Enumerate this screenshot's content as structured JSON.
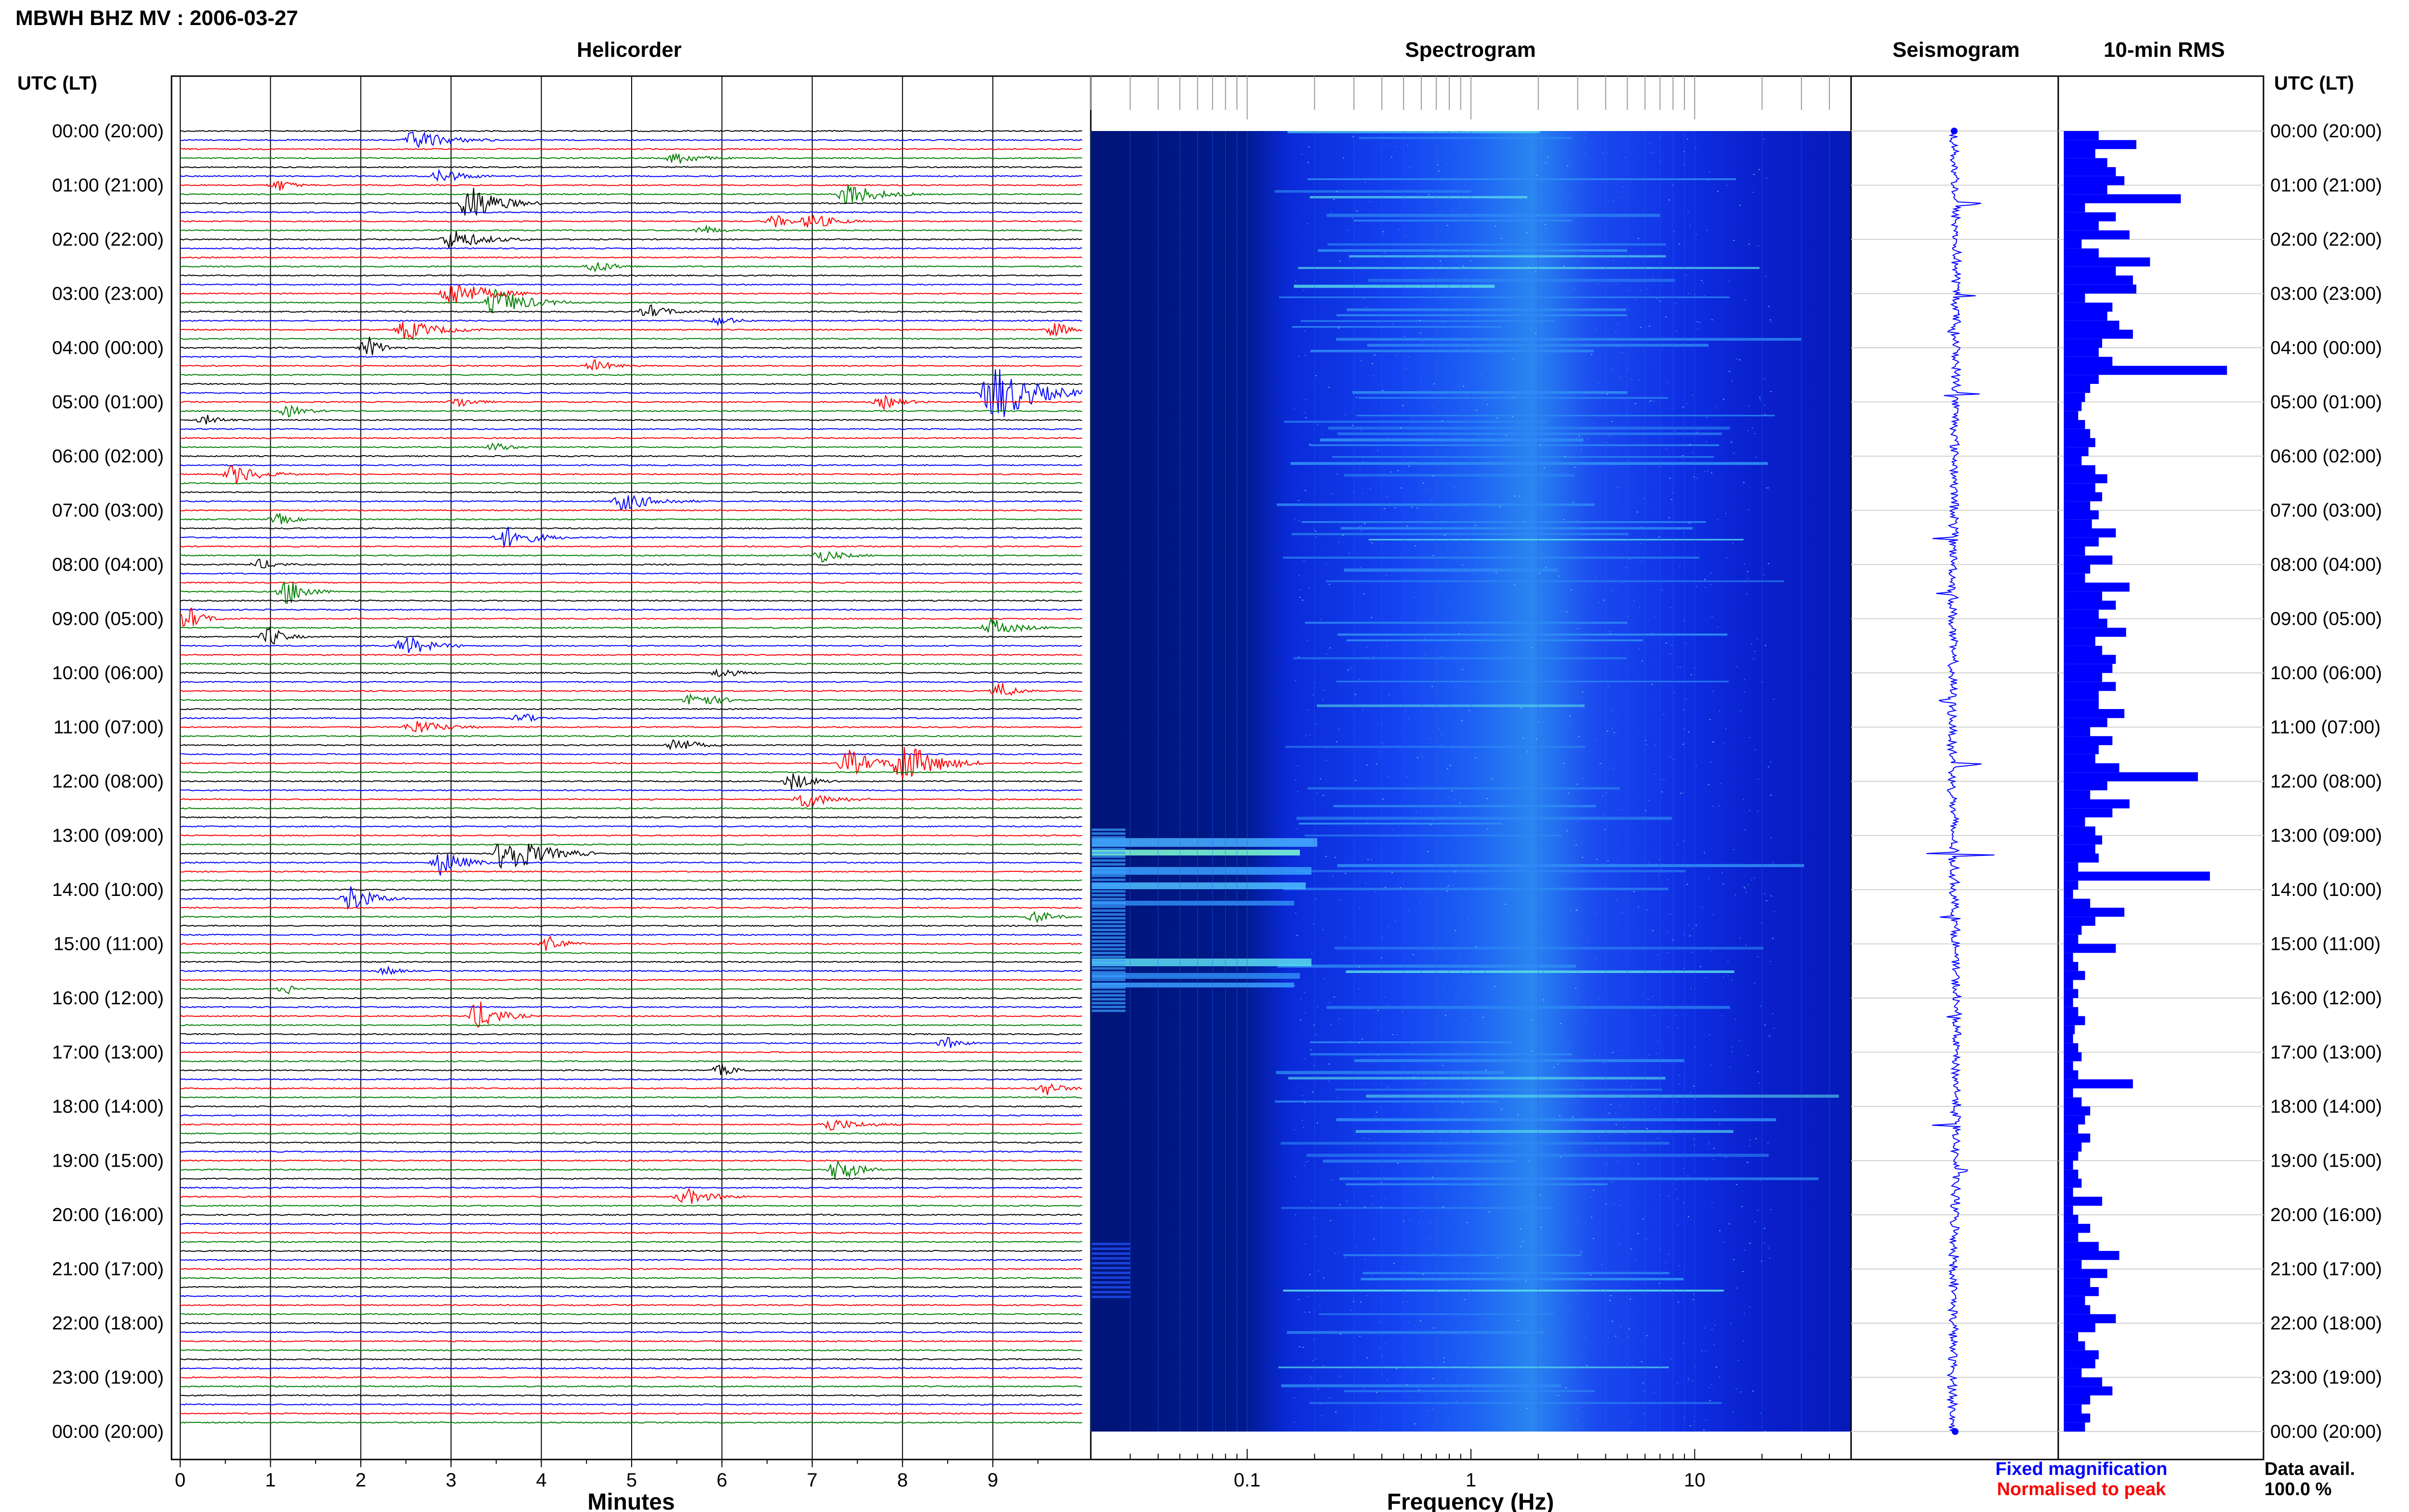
{
  "title": "MBWH BHZ MV : 2006-03-27",
  "panels": {
    "helicorder": "Helicorder",
    "spectrogram": "Spectrogram",
    "seismogram": "Seismogram",
    "rms": "10-min RMS"
  },
  "axis": {
    "utc_label_left": "UTC (LT)",
    "utc_label_right": "UTC (LT)",
    "minutes_label": "Minutes",
    "frequency_label": "Frequency (Hz)"
  },
  "legend": {
    "fixed": "Fixed magnification",
    "normalised": "Normalised to peak",
    "fixed_color": "#0000ff",
    "normalised_color": "#ff0000"
  },
  "data_avail": {
    "label": "Data avail.",
    "value": "100.0 %"
  },
  "chart_data": {
    "type": "helicorder+spectrogram+rms",
    "time_labels": [
      "00:00 (20:00)",
      "01:00 (21:00)",
      "02:00 (22:00)",
      "03:00 (23:00)",
      "04:00 (00:00)",
      "05:00 (01:00)",
      "06:00 (02:00)",
      "07:00 (03:00)",
      "08:00 (04:00)",
      "09:00 (05:00)",
      "10:00 (06:00)",
      "11:00 (07:00)",
      "12:00 (08:00)",
      "13:00 (09:00)",
      "14:00 (10:00)",
      "15:00 (11:00)",
      "16:00 (12:00)",
      "17:00 (13:00)",
      "18:00 (14:00)",
      "19:00 (15:00)",
      "20:00 (16:00)",
      "21:00 (17:00)",
      "22:00 (18:00)",
      "23:00 (19:00)",
      "00:00 (20:00)"
    ],
    "minutes_ticks": [
      "0",
      "1",
      "2",
      "3",
      "4",
      "5",
      "6",
      "7",
      "8",
      "9"
    ],
    "freq_ticks": [
      "0.1",
      "1",
      "10"
    ],
    "freq_range_hz": [
      0.02,
      50
    ],
    "trace_colors": [
      "#000000",
      "#0000ff",
      "#ff0000",
      "#008000"
    ],
    "rms_10min": [
      0.2,
      0.42,
      0.18,
      0.25,
      0.3,
      0.35,
      0.25,
      0.68,
      0.12,
      0.3,
      0.2,
      0.38,
      0.1,
      0.2,
      0.5,
      0.3,
      0.4,
      0.42,
      0.12,
      0.28,
      0.25,
      0.32,
      0.4,
      0.22,
      0.2,
      0.28,
      0.95,
      0.2,
      0.15,
      0.12,
      0.1,
      0.08,
      0.12,
      0.15,
      0.18,
      0.14,
      0.1,
      0.18,
      0.25,
      0.18,
      0.22,
      0.15,
      0.2,
      0.16,
      0.3,
      0.2,
      0.12,
      0.28,
      0.15,
      0.12,
      0.38,
      0.22,
      0.3,
      0.2,
      0.25,
      0.36,
      0.18,
      0.22,
      0.3,
      0.28,
      0.22,
      0.3,
      0.2,
      0.2,
      0.35,
      0.25,
      0.15,
      0.28,
      0.2,
      0.18,
      0.32,
      0.78,
      0.25,
      0.15,
      0.38,
      0.28,
      0.12,
      0.18,
      0.22,
      0.18,
      0.2,
      0.08,
      0.85,
      0.08,
      0.05,
      0.15,
      0.35,
      0.18,
      0.1,
      0.08,
      0.3,
      0.05,
      0.08,
      0.12,
      0.05,
      0.08,
      0.05,
      0.08,
      0.12,
      0.06,
      0.05,
      0.08,
      0.1,
      0.05,
      0.08,
      0.4,
      0.05,
      0.1,
      0.15,
      0.12,
      0.08,
      0.15,
      0.1,
      0.08,
      0.05,
      0.08,
      0.1,
      0.05,
      0.22,
      0.05,
      0.08,
      0.15,
      0.08,
      0.2,
      0.32,
      0.1,
      0.25,
      0.15,
      0.2,
      0.12,
      0.15,
      0.3,
      0.18,
      0.08,
      0.12,
      0.2,
      0.18,
      0.1,
      0.22,
      0.28,
      0.15,
      0.1,
      0.15,
      0.12
    ]
  }
}
